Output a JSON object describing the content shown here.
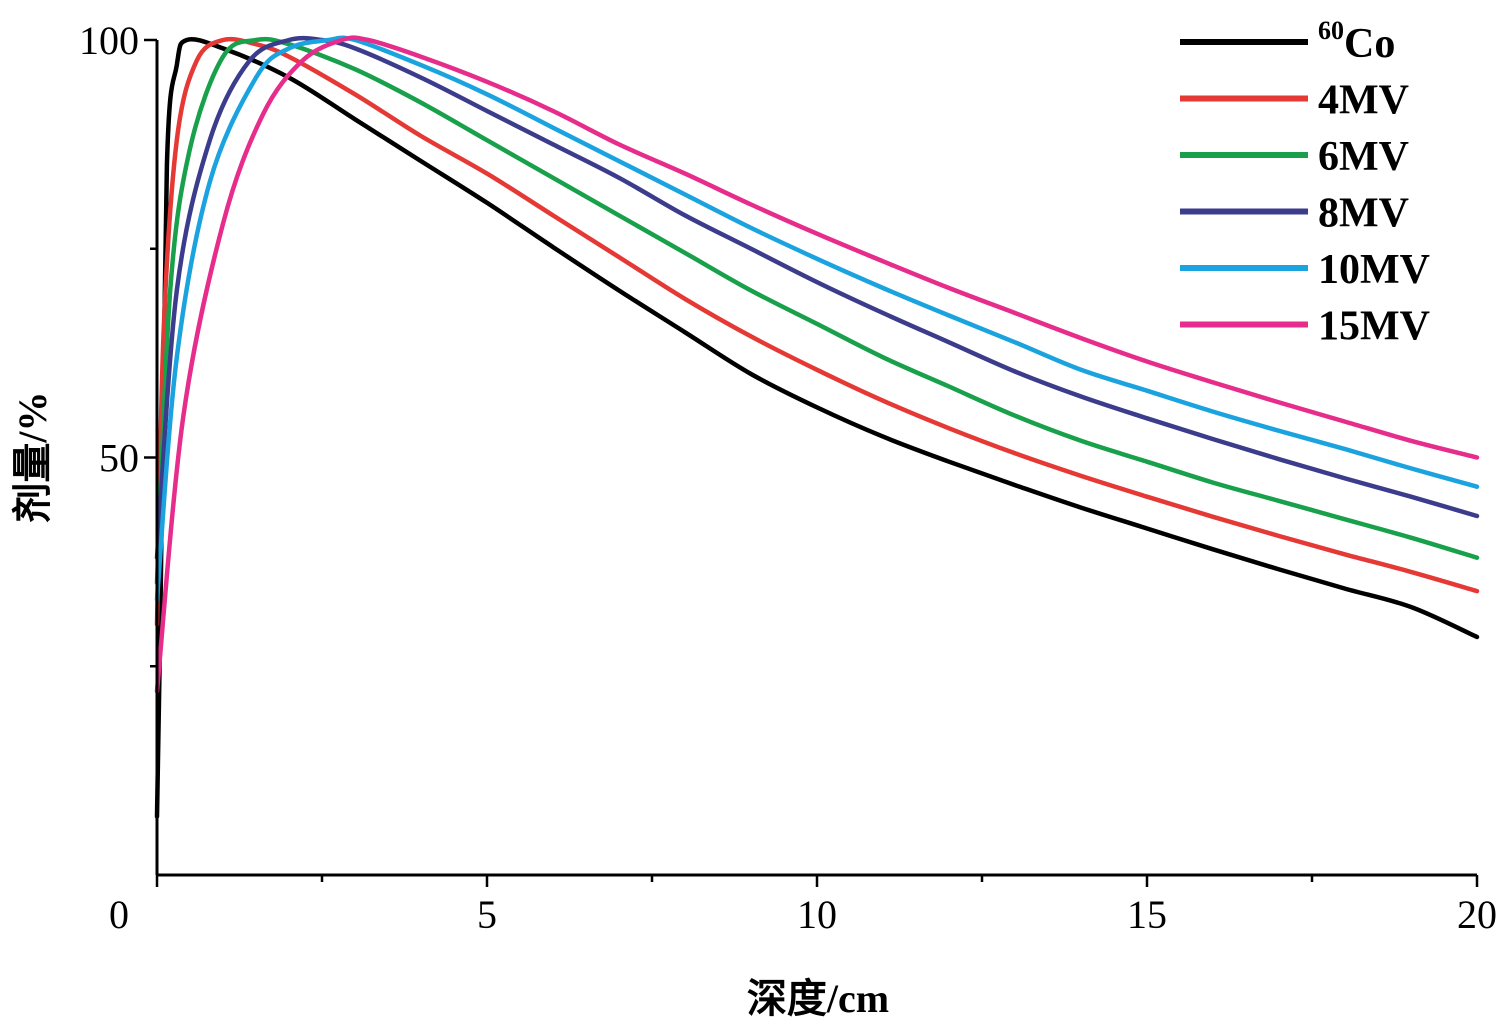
{
  "chart_data": {
    "type": "line",
    "xlabel": "深度/cm",
    "ylabel": "剂量/%",
    "xlim": [
      0,
      20
    ],
    "ylim": [
      0,
      100
    ],
    "x_ticks": [
      "0",
      "5",
      "10",
      "15",
      "20"
    ],
    "y_ticks": [
      "50",
      "100"
    ],
    "grid": false,
    "legend_position": "top-right",
    "series": [
      {
        "name": "Co",
        "name_superscript": "60",
        "color": "#000000",
        "points": [
          [
            0,
            7
          ],
          [
            0.05,
            30
          ],
          [
            0.15,
            85
          ],
          [
            0.3,
            97
          ],
          [
            0.45,
            100
          ],
          [
            1.0,
            99
          ],
          [
            2.0,
            95.5
          ],
          [
            3.0,
            90.5
          ],
          [
            4.0,
            85.5
          ],
          [
            5.0,
            80.5
          ],
          [
            6.0,
            75.2
          ],
          [
            7.0,
            70
          ],
          [
            8.0,
            65
          ],
          [
            9.0,
            60
          ],
          [
            10.0,
            56
          ],
          [
            11.0,
            52.5
          ],
          [
            12.0,
            49.5
          ],
          [
            13.0,
            46.7
          ],
          [
            14.0,
            44
          ],
          [
            15.0,
            41.5
          ],
          [
            16.0,
            39
          ],
          [
            17.0,
            36.6
          ],
          [
            18.0,
            34.3
          ],
          [
            19.0,
            32.1
          ],
          [
            20.0,
            28.5
          ]
        ]
      },
      {
        "name": "4MV",
        "color": "#e53935",
        "points": [
          [
            0,
            30
          ],
          [
            0.1,
            65
          ],
          [
            0.3,
            88
          ],
          [
            0.6,
            97.5
          ],
          [
            1.0,
            100
          ],
          [
            1.5,
            99.5
          ],
          [
            2.0,
            98
          ],
          [
            3.0,
            93.5
          ],
          [
            4.0,
            88.5
          ],
          [
            5.0,
            84
          ],
          [
            6.0,
            79
          ],
          [
            7.0,
            74
          ],
          [
            8.0,
            69
          ],
          [
            9.0,
            64.5
          ],
          [
            10.0,
            60.5
          ],
          [
            11.0,
            56.8
          ],
          [
            12.0,
            53.5
          ],
          [
            13.0,
            50.5
          ],
          [
            14.0,
            47.8
          ],
          [
            15.0,
            45.3
          ],
          [
            16.0,
            42.9
          ],
          [
            17.0,
            40.6
          ],
          [
            18.0,
            38.4
          ],
          [
            19.0,
            36.3
          ],
          [
            20.0,
            34
          ]
        ]
      },
      {
        "name": "6MV",
        "color": "#18a04a",
        "points": [
          [
            0,
            35
          ],
          [
            0.2,
            70
          ],
          [
            0.5,
            87
          ],
          [
            1.0,
            98
          ],
          [
            1.5,
            100
          ],
          [
            2.0,
            99.5
          ],
          [
            3.0,
            96.5
          ],
          [
            4.0,
            92.5
          ],
          [
            5.0,
            88
          ],
          [
            6.0,
            83.5
          ],
          [
            7.0,
            79
          ],
          [
            8.0,
            74.5
          ],
          [
            9.0,
            70
          ],
          [
            10.0,
            66
          ],
          [
            11.0,
            62
          ],
          [
            12.0,
            58.5
          ],
          [
            13.0,
            55
          ],
          [
            14.0,
            52
          ],
          [
            15.0,
            49.5
          ],
          [
            16.0,
            47
          ],
          [
            17.0,
            44.8
          ],
          [
            18.0,
            42.6
          ],
          [
            19.0,
            40.4
          ],
          [
            20.0,
            38
          ]
        ]
      },
      {
        "name": "8MV",
        "color": "#3c3c8c",
        "points": [
          [
            0,
            38
          ],
          [
            0.3,
            70
          ],
          [
            0.8,
            88
          ],
          [
            1.4,
            97.5
          ],
          [
            2.0,
            100
          ],
          [
            2.5,
            100
          ],
          [
            3.0,
            99
          ],
          [
            4.0,
            95.5
          ],
          [
            5.0,
            91.5
          ],
          [
            6.0,
            87.5
          ],
          [
            7.0,
            83.5
          ],
          [
            8.0,
            79
          ],
          [
            9.0,
            75
          ],
          [
            10.0,
            71
          ],
          [
            11.0,
            67.3
          ],
          [
            12.0,
            63.8
          ],
          [
            13.0,
            60.3
          ],
          [
            14.0,
            57.3
          ],
          [
            15.0,
            54.7
          ],
          [
            16.0,
            52.2
          ],
          [
            17.0,
            49.8
          ],
          [
            18.0,
            47.5
          ],
          [
            19.0,
            45.3
          ],
          [
            20.0,
            43
          ]
        ]
      },
      {
        "name": "10MV",
        "color": "#1ba3e0",
        "points": [
          [
            0,
            33
          ],
          [
            0.3,
            62
          ],
          [
            0.8,
            83
          ],
          [
            1.5,
            95.5
          ],
          [
            2.0,
            99
          ],
          [
            2.6,
            100
          ],
          [
            3.0,
            100
          ],
          [
            4.0,
            97
          ],
          [
            5.0,
            93.5
          ],
          [
            6.0,
            89.5
          ],
          [
            7.0,
            85.5
          ],
          [
            8.0,
            81.5
          ],
          [
            9.0,
            77.5
          ],
          [
            10.0,
            73.8
          ],
          [
            11.0,
            70.3
          ],
          [
            12.0,
            67
          ],
          [
            13.0,
            63.8
          ],
          [
            14.0,
            60.5
          ],
          [
            15.0,
            58
          ],
          [
            16.0,
            55.5
          ],
          [
            17.0,
            53.2
          ],
          [
            18.0,
            51
          ],
          [
            19.0,
            48.7
          ],
          [
            20.0,
            46.5
          ]
        ]
      },
      {
        "name": "15MV",
        "color": "#e62d8c",
        "points": [
          [
            0,
            22
          ],
          [
            0.4,
            55
          ],
          [
            1.0,
            78
          ],
          [
            1.6,
            91
          ],
          [
            2.2,
            97.5
          ],
          [
            2.8,
            100
          ],
          [
            3.2,
            100
          ],
          [
            4.0,
            98
          ],
          [
            5.0,
            95
          ],
          [
            6.0,
            91.5
          ],
          [
            7.0,
            87.5
          ],
          [
            8.0,
            84
          ],
          [
            9.0,
            80.3
          ],
          [
            10.0,
            76.8
          ],
          [
            11.0,
            73.5
          ],
          [
            12.0,
            70.3
          ],
          [
            13.0,
            67.3
          ],
          [
            14.0,
            64.3
          ],
          [
            15.0,
            61.5
          ],
          [
            16.0,
            59
          ],
          [
            17.0,
            56.6
          ],
          [
            18.0,
            54.3
          ],
          [
            19.0,
            52
          ],
          [
            20.0,
            50
          ]
        ]
      }
    ]
  }
}
